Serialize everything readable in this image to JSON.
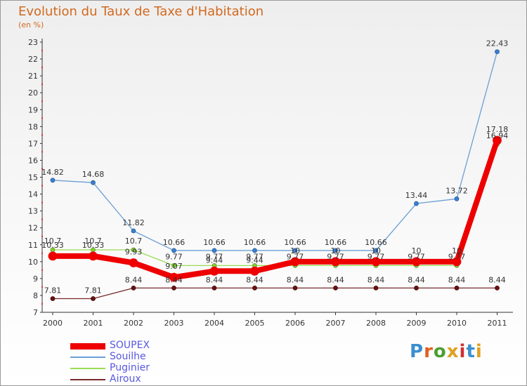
{
  "title": "Evolution du Taux de Taxe d'Habitation",
  "subtitle": "(en %)",
  "brand": "Proxiti",
  "chart_data": {
    "type": "line",
    "title": "Evolution du Taux de Taxe d'Habitation",
    "ylabel": "(en %)",
    "xlabel": "",
    "categories": [
      "2000",
      "2001",
      "2002",
      "2003",
      "2004",
      "2005",
      "2006",
      "2007",
      "2008",
      "2009",
      "2010",
      "2011"
    ],
    "ylim": [
      7,
      23
    ],
    "yticks": [
      "7",
      "8",
      "9",
      "10",
      "11",
      "12",
      "13",
      "14",
      "15",
      "16",
      "17",
      "18",
      "19",
      "20",
      "21",
      "22",
      "23"
    ],
    "grid": false,
    "legend_position": "bottom-left",
    "series": [
      {
        "name": "SOUPEX",
        "color": "#ee0000",
        "values": [
          10.33,
          10.33,
          9.93,
          9.07,
          9.44,
          9.44,
          10,
          10,
          10,
          10,
          10,
          17.18
        ],
        "labels": [
          "10.33",
          "10.33",
          "9.93",
          "9.07",
          "9.44",
          "9.44",
          "10",
          "10",
          "10",
          "10",
          "10",
          "17.18"
        ]
      },
      {
        "name": "Souilhe",
        "color": "#6a9fd4",
        "values": [
          14.82,
          14.68,
          11.82,
          10.66,
          10.66,
          10.66,
          10.66,
          10.66,
          10.66,
          13.44,
          13.72,
          22.43
        ],
        "labels": [
          "14.82",
          "14.68",
          "11.82",
          "10.66",
          "10.66",
          "10.66",
          "10.66",
          "10.66",
          "10.66",
          "13.44",
          "13.72",
          "22.43"
        ]
      },
      {
        "name": "Puginier",
        "color": "#99dd55",
        "values": [
          10.7,
          10.7,
          10.7,
          9.77,
          9.77,
          9.77,
          9.77,
          9.77,
          9.77,
          9.77,
          9.77,
          16.94
        ],
        "labels": [
          "10.7",
          "10.7",
          "10.7",
          "9.77",
          "9.77",
          "9.77",
          "9.77",
          "9.77",
          "9.77",
          "9.77",
          "9.77",
          "16.94"
        ]
      },
      {
        "name": "Airoux",
        "color": "#7a2a2a",
        "values": [
          7.81,
          7.81,
          8.44,
          8.44,
          8.44,
          8.44,
          8.44,
          8.44,
          8.44,
          8.44,
          8.44,
          8.44
        ],
        "labels": [
          "7.81",
          "7.81",
          "8.44",
          "8.44",
          "8.44",
          "8.44",
          "8.44",
          "8.44",
          "8.44",
          "8.44",
          "8.44",
          "8.44"
        ]
      }
    ]
  }
}
